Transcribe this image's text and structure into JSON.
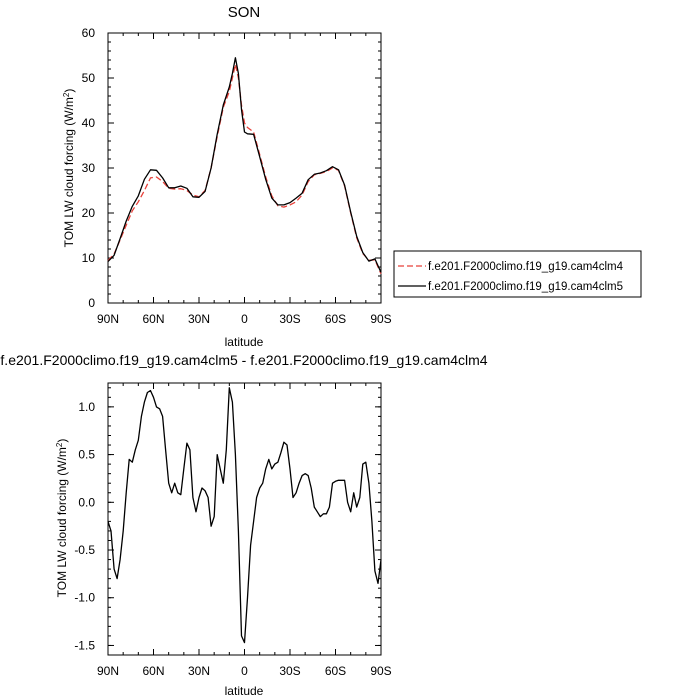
{
  "chart_data": [
    {
      "type": "line",
      "title": "SON",
      "xlabel": "latitude",
      "ylabel": "TOM LW cloud forcing (W/m",
      "ylabel_sup": "2",
      "ylabel_end": ")",
      "xlim": [
        90,
        -90
      ],
      "ylim": [
        0,
        60
      ],
      "x_ticks": [
        90,
        60,
        30,
        0,
        -30,
        -60,
        -90
      ],
      "x_tick_labels": [
        "90N",
        "60N",
        "30N",
        "0",
        "30S",
        "60S",
        "90S"
      ],
      "y_ticks": [
        0,
        10,
        20,
        30,
        40,
        50,
        60
      ],
      "y_tick_labels": [
        "0",
        "10",
        "20",
        "30",
        "40",
        "50",
        "60"
      ],
      "legend_placement": "right",
      "series": [
        {
          "name": "f.e201.F2000climo.f19_g19.cam4clm4",
          "color": "#e8413a",
          "dash": true,
          "x": [
            90,
            86,
            82,
            78,
            74,
            70,
            66,
            62,
            58,
            54,
            50,
            46,
            42,
            38,
            34,
            30,
            26,
            22,
            18,
            14,
            10,
            8,
            6,
            4,
            2,
            0,
            -2,
            -6,
            -10,
            -14,
            -18,
            -22,
            -26,
            -30,
            -34,
            -38,
            -42,
            -46,
            -50,
            -54,
            -58,
            -62,
            -66,
            -70,
            -74,
            -78,
            -82,
            -86,
            -90
          ],
          "y": [
            9.4,
            10.9,
            14.0,
            17.3,
            20.5,
            22.5,
            25.0,
            27.8,
            28.0,
            27.0,
            25.5,
            25.3,
            25.4,
            25.0,
            24.0,
            23.6,
            25.0,
            30.0,
            37.0,
            43.5,
            47.0,
            50.0,
            53.0,
            50.0,
            44.0,
            40.0,
            39.0,
            38.0,
            33.0,
            28.0,
            23.8,
            21.6,
            21.3,
            21.8,
            22.5,
            24.0,
            27.0,
            28.5,
            28.8,
            29.2,
            30.0,
            29.5,
            26.0,
            20.0,
            14.5,
            11.0,
            9.5,
            9.6,
            6.5
          ]
        },
        {
          "name": "f.e201.F2000climo.f19_g19.cam4clm5",
          "color": "#000000",
          "dash": false,
          "x": [
            90,
            86,
            82,
            78,
            74,
            70,
            66,
            62,
            58,
            54,
            50,
            46,
            42,
            38,
            34,
            30,
            26,
            22,
            18,
            14,
            10,
            8,
            6,
            4,
            2,
            0,
            -2,
            -6,
            -10,
            -14,
            -18,
            -22,
            -26,
            -30,
            -34,
            -38,
            -42,
            -46,
            -50,
            -54,
            -58,
            -62,
            -66,
            -70,
            -74,
            -78,
            -82,
            -86,
            -90
          ],
          "y": [
            9.2,
            10.6,
            14.3,
            18.2,
            21.5,
            23.8,
            27.5,
            29.6,
            29.5,
            27.8,
            25.6,
            25.6,
            26.0,
            25.5,
            23.6,
            23.5,
            24.8,
            30.0,
            37.5,
            44.0,
            48.0,
            51.0,
            54.5,
            51.0,
            43.0,
            38.0,
            37.6,
            37.5,
            32.5,
            27.5,
            23.3,
            21.8,
            21.8,
            22.3,
            23.3,
            24.4,
            27.4,
            28.6,
            28.9,
            29.4,
            30.3,
            29.6,
            26.2,
            20.2,
            14.8,
            11.2,
            9.3,
            9.8,
            6.8
          ]
        }
      ]
    },
    {
      "type": "line",
      "title": "f.e201.F2000climo.f19_g19.cam4clm5 - f.e201.F2000climo.f19_g19.cam4clm4",
      "xlabel": "latitude",
      "ylabel": "TOM LW cloud forcing (W/m",
      "ylabel_sup": "2",
      "ylabel_end": ")",
      "xlim": [
        90,
        -90
      ],
      "ylim": [
        -1.6,
        1.25
      ],
      "x_ticks": [
        90,
        60,
        30,
        0,
        -30,
        -60,
        -90
      ],
      "x_tick_labels": [
        "90N",
        "60N",
        "30N",
        "0",
        "30S",
        "60S",
        "90S"
      ],
      "y_ticks": [
        -1.5,
        -1.0,
        -0.5,
        0.0,
        0.5,
        1.0
      ],
      "y_tick_labels": [
        "-1.5",
        "-1.0",
        "-0.5",
        "0.0",
        "0.5",
        "1.0"
      ],
      "series": [
        {
          "color": "#000000",
          "x": [
            90,
            88,
            86,
            84,
            82,
            80,
            78,
            76,
            74,
            72,
            70,
            68,
            66,
            64,
            62,
            60,
            58,
            56,
            54,
            52,
            50,
            48,
            46,
            44,
            42,
            40,
            38,
            36,
            34,
            32,
            30,
            28,
            26,
            24,
            22,
            20,
            18,
            16,
            14,
            12,
            10,
            8,
            6,
            4,
            2,
            0,
            -2,
            -4,
            -6,
            -8,
            -10,
            -12,
            -14,
            -16,
            -18,
            -20,
            -22,
            -24,
            -26,
            -28,
            -30,
            -32,
            -34,
            -36,
            -38,
            -40,
            -42,
            -44,
            -46,
            -48,
            -50,
            -52,
            -54,
            -56,
            -58,
            -60,
            -62,
            -64,
            -66,
            -68,
            -70,
            -72,
            -74,
            -76,
            -78,
            -80,
            -82,
            -84,
            -86,
            -88,
            -90
          ],
          "y": [
            -0.2,
            -0.3,
            -0.7,
            -0.8,
            -0.6,
            -0.3,
            0.1,
            0.45,
            0.42,
            0.55,
            0.65,
            0.9,
            1.05,
            1.15,
            1.17,
            1.1,
            1.0,
            0.98,
            0.9,
            0.55,
            0.2,
            0.1,
            0.2,
            0.1,
            0.08,
            0.35,
            0.62,
            0.55,
            0.05,
            -0.1,
            0.05,
            0.15,
            0.12,
            0.05,
            -0.25,
            -0.15,
            0.5,
            0.35,
            0.2,
            0.55,
            1.2,
            1.05,
            0.5,
            -0.3,
            -1.4,
            -1.47,
            -1.0,
            -0.45,
            -0.2,
            0.05,
            0.15,
            0.2,
            0.35,
            0.45,
            0.35,
            0.4,
            0.42,
            0.52,
            0.63,
            0.6,
            0.35,
            0.05,
            0.1,
            0.2,
            0.28,
            0.3,
            0.28,
            0.15,
            -0.05,
            -0.1,
            -0.15,
            -0.12,
            -0.12,
            -0.05,
            0.2,
            0.22,
            0.23,
            0.23,
            0.23,
            0.0,
            -0.1,
            0.1,
            -0.05,
            0.05,
            0.4,
            0.42,
            0.2,
            -0.2,
            -0.72,
            -0.85,
            -0.6
          ]
        }
      ]
    }
  ]
}
